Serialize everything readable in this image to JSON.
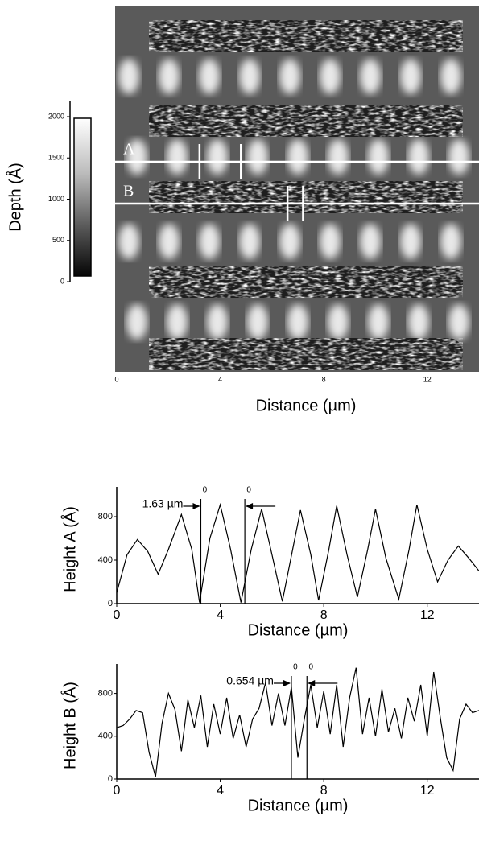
{
  "chart_data": [
    {
      "type": "image",
      "xlabel": "Distance (µm)",
      "xlim": [
        0,
        14
      ],
      "xticks": [
        0,
        4,
        8,
        12
      ],
      "colorbar": {
        "label": "Depth (Å)",
        "lim": [
          0,
          2000
        ],
        "ticks": [
          0,
          500,
          1000,
          1500,
          2000
        ]
      },
      "lines": [
        {
          "label": "A",
          "cursors": [
            3.2,
            4.8
          ]
        },
        {
          "label": "B",
          "cursors": [
            6.6,
            7.2
          ]
        }
      ]
    },
    {
      "type": "line",
      "ylabel": "Height  A (Å)",
      "xlabel": "Distance (µm)",
      "color": "#000000",
      "xlim": [
        0,
        14
      ],
      "xticks": [
        0,
        4,
        8,
        12
      ],
      "ylim": [
        0,
        1000
      ],
      "yticks": [
        0,
        400,
        800
      ],
      "x": [
        0,
        0.4,
        0.8,
        1.2,
        1.6,
        2.0,
        2.5,
        2.9,
        3.2,
        3.6,
        4.0,
        4.4,
        4.8,
        5.2,
        5.6,
        6.0,
        6.4,
        6.8,
        7.1,
        7.5,
        7.8,
        8.2,
        8.5,
        8.9,
        9.3,
        9.7,
        10.0,
        10.4,
        10.9,
        11.3,
        11.6,
        12.0,
        12.4,
        12.8,
        13.2,
        13.6,
        14.0
      ],
      "values": [
        100,
        450,
        590,
        480,
        270,
        500,
        820,
        500,
        10,
        600,
        910,
        500,
        10,
        500,
        870,
        450,
        20,
        500,
        860,
        450,
        30,
        500,
        900,
        450,
        60,
        500,
        870,
        420,
        40,
        500,
        910,
        500,
        200,
        400,
        530,
        420,
        300
      ],
      "cursors": [
        3.25,
        4.95
      ],
      "annotation": "1.63 µm",
      "cursor_label": "0"
    },
    {
      "type": "line",
      "ylabel": "Height  B (Å)",
      "xlabel": "Distance (µm)",
      "color": "#000000",
      "xlim": [
        0,
        14
      ],
      "xticks": [
        0,
        4,
        8,
        12
      ],
      "ylim": [
        0,
        1000
      ],
      "yticks": [
        0,
        400,
        800
      ],
      "x": [
        0,
        0.25,
        0.5,
        0.75,
        1,
        1.25,
        1.5,
        1.75,
        2,
        2.25,
        2.5,
        2.75,
        3,
        3.25,
        3.5,
        3.75,
        4,
        4.25,
        4.5,
        4.75,
        5,
        5.25,
        5.5,
        5.75,
        6,
        6.25,
        6.5,
        6.75,
        7,
        7.25,
        7.5,
        7.75,
        8,
        8.25,
        8.5,
        8.75,
        9,
        9.25,
        9.5,
        9.75,
        10,
        10.25,
        10.5,
        10.75,
        11,
        11.25,
        11.5,
        11.75,
        12,
        12.25,
        12.5,
        12.75,
        13,
        13.25,
        13.5,
        13.75,
        14
      ],
      "values": [
        480,
        500,
        560,
        640,
        620,
        250,
        20,
        520,
        800,
        650,
        260,
        740,
        480,
        780,
        300,
        700,
        420,
        760,
        380,
        600,
        300,
        560,
        660,
        900,
        500,
        800,
        500,
        860,
        200,
        560,
        880,
        480,
        820,
        420,
        880,
        300,
        760,
        1040,
        420,
        760,
        400,
        840,
        440,
        660,
        380,
        760,
        540,
        880,
        400,
        1000,
        580,
        200,
        80,
        560,
        700,
        620,
        640
      ],
      "cursors": [
        6.75,
        7.35
      ],
      "annotation": "0.654 µm",
      "cursor_label": "0"
    }
  ]
}
